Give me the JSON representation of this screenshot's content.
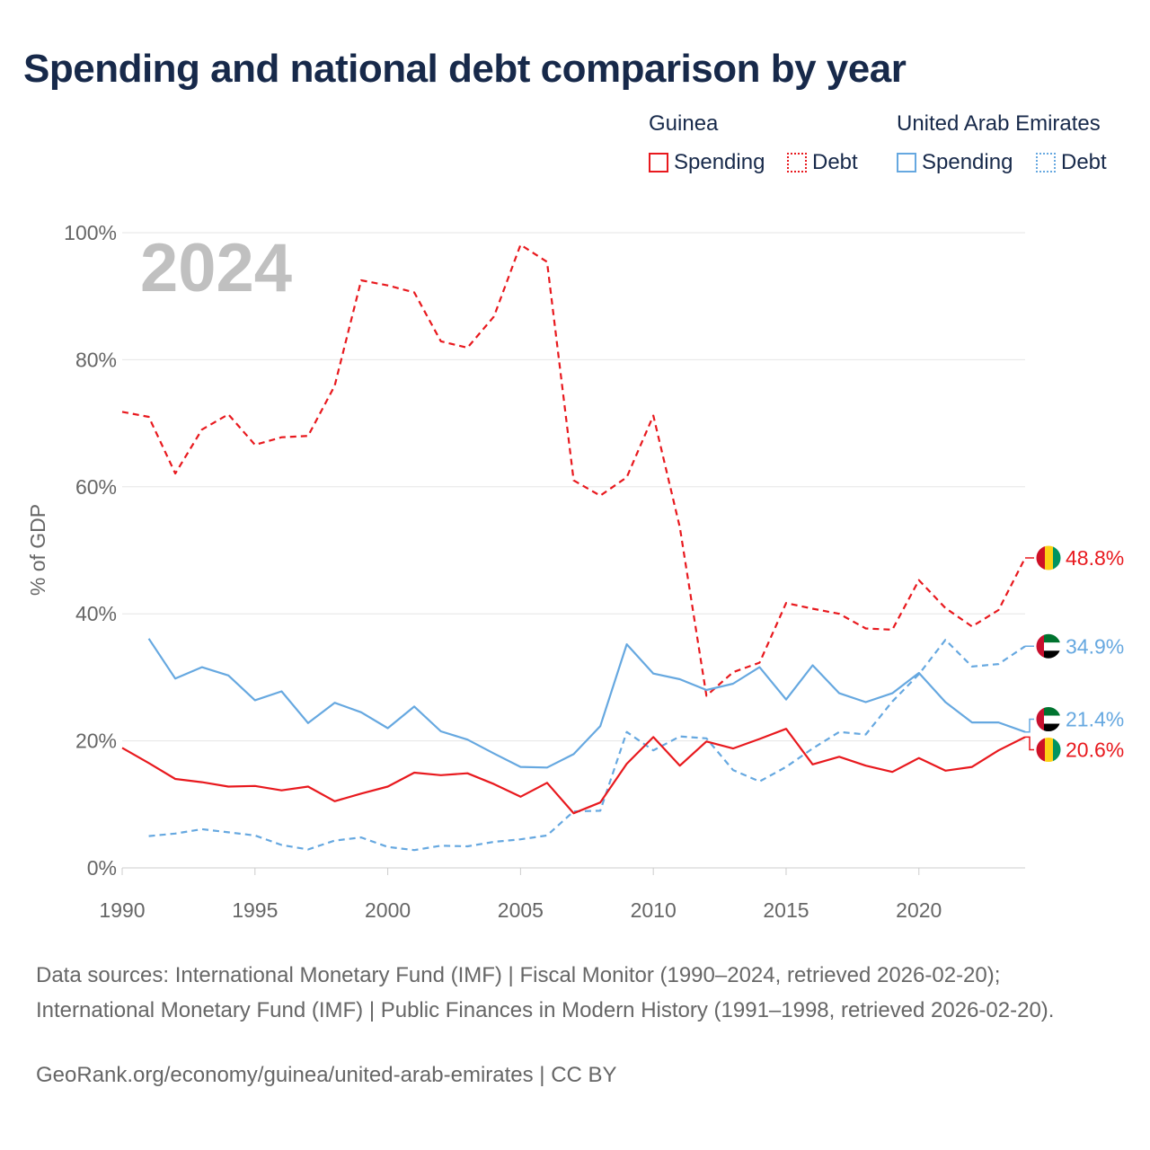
{
  "title": "Spending and national debt comparison by year",
  "legend": {
    "groups": [
      {
        "country": "Guinea",
        "spending_label": "Spending",
        "debt_label": "Debt",
        "color": "#e8191e"
      },
      {
        "country": "United Arab Emirates",
        "spending_label": "Spending",
        "debt_label": "Debt",
        "color": "#66a8e0"
      }
    ]
  },
  "chart_data": {
    "type": "line",
    "year_watermark": "2024",
    "ylabel": "% of GDP",
    "xlim": [
      1990,
      2024
    ],
    "ylim": [
      0,
      100
    ],
    "x_ticks": [
      1990,
      1995,
      2000,
      2005,
      2010,
      2015,
      2020
    ],
    "y_ticks": [
      {
        "value": 0,
        "label": "0%"
      },
      {
        "value": 20,
        "label": "20%"
      },
      {
        "value": 40,
        "label": "40%"
      },
      {
        "value": 60,
        "label": "60%"
      },
      {
        "value": 80,
        "label": "80%"
      },
      {
        "value": 100,
        "label": "100%"
      }
    ],
    "grid": true,
    "series": [
      {
        "name": "Guinea Debt",
        "country": "Guinea",
        "kind": "debt",
        "color": "#e8191e",
        "dashed": true,
        "end_label": "48.8%",
        "flag": "guinea",
        "points": [
          [
            1990,
            71.8
          ],
          [
            1991,
            71.0
          ],
          [
            1992,
            62.1
          ],
          [
            1993,
            69.0
          ],
          [
            1994,
            71.4
          ],
          [
            1995,
            66.6
          ],
          [
            1996,
            67.8
          ],
          [
            1997,
            68.0
          ],
          [
            1998,
            75.9
          ],
          [
            1999,
            92.5
          ],
          [
            2000,
            91.7
          ],
          [
            2001,
            90.6
          ],
          [
            2002,
            82.9
          ],
          [
            2003,
            81.9
          ],
          [
            2004,
            86.8
          ],
          [
            2005,
            98.1
          ],
          [
            2006,
            95.4
          ],
          [
            2007,
            61.0
          ],
          [
            2008,
            58.6
          ],
          [
            2009,
            61.5
          ],
          [
            2010,
            71.2
          ],
          [
            2011,
            53.6
          ],
          [
            2012,
            27.1
          ],
          [
            2013,
            30.8
          ],
          [
            2014,
            32.3
          ],
          [
            2015,
            41.7
          ],
          [
            2016,
            40.8
          ],
          [
            2017,
            40.0
          ],
          [
            2018,
            37.7
          ],
          [
            2019,
            37.5
          ],
          [
            2020,
            45.3
          ],
          [
            2021,
            40.9
          ],
          [
            2022,
            38.0
          ],
          [
            2023,
            40.6
          ],
          [
            2024,
            48.8
          ]
        ]
      },
      {
        "name": "United Arab Emirates Debt",
        "country": "United Arab Emirates",
        "kind": "debt",
        "color": "#66a8e0",
        "dashed": true,
        "end_label": "34.9%",
        "flag": "uae",
        "points": [
          [
            1991,
            5.0
          ],
          [
            1992,
            5.4
          ],
          [
            1993,
            6.1
          ],
          [
            1994,
            5.6
          ],
          [
            1995,
            5.1
          ],
          [
            1996,
            3.6
          ],
          [
            1997,
            2.9
          ],
          [
            1998,
            4.3
          ],
          [
            1999,
            4.8
          ],
          [
            2000,
            3.3
          ],
          [
            2001,
            2.8
          ],
          [
            2002,
            3.5
          ],
          [
            2003,
            3.4
          ],
          [
            2004,
            4.1
          ],
          [
            2005,
            4.5
          ],
          [
            2006,
            5.1
          ],
          [
            2007,
            8.9
          ],
          [
            2008,
            9.0
          ],
          [
            2009,
            21.4
          ],
          [
            2010,
            18.5
          ],
          [
            2011,
            20.7
          ],
          [
            2012,
            20.4
          ],
          [
            2013,
            15.4
          ],
          [
            2014,
            13.6
          ],
          [
            2015,
            15.9
          ],
          [
            2016,
            18.8
          ],
          [
            2017,
            21.4
          ],
          [
            2018,
            21.0
          ],
          [
            2019,
            26.2
          ],
          [
            2020,
            30.5
          ],
          [
            2021,
            35.9
          ],
          [
            2022,
            31.7
          ],
          [
            2023,
            32.1
          ],
          [
            2024,
            34.9
          ]
        ]
      },
      {
        "name": "United Arab Emirates Spending",
        "country": "United Arab Emirates",
        "kind": "spending",
        "color": "#66a8e0",
        "dashed": false,
        "end_label": "21.4%",
        "flag": "uae",
        "points": [
          [
            1991,
            36.1
          ],
          [
            1992,
            29.8
          ],
          [
            1993,
            31.6
          ],
          [
            1994,
            30.3
          ],
          [
            1995,
            26.4
          ],
          [
            1996,
            27.8
          ],
          [
            1997,
            22.8
          ],
          [
            1998,
            26.0
          ],
          [
            1999,
            24.5
          ],
          [
            2000,
            22.0
          ],
          [
            2001,
            25.4
          ],
          [
            2002,
            21.5
          ],
          [
            2003,
            20.2
          ],
          [
            2004,
            18.0
          ],
          [
            2005,
            15.9
          ],
          [
            2006,
            15.8
          ],
          [
            2007,
            17.9
          ],
          [
            2008,
            22.3
          ],
          [
            2009,
            35.2
          ],
          [
            2010,
            30.6
          ],
          [
            2011,
            29.7
          ],
          [
            2012,
            28.0
          ],
          [
            2013,
            29.0
          ],
          [
            2014,
            31.6
          ],
          [
            2015,
            26.5
          ],
          [
            2016,
            31.9
          ],
          [
            2017,
            27.5
          ],
          [
            2018,
            26.1
          ],
          [
            2019,
            27.5
          ],
          [
            2020,
            30.7
          ],
          [
            2021,
            26.1
          ],
          [
            2022,
            22.9
          ],
          [
            2023,
            22.9
          ],
          [
            2024,
            21.4
          ]
        ]
      },
      {
        "name": "Guinea Spending",
        "country": "Guinea",
        "kind": "spending",
        "color": "#e8191e",
        "dashed": false,
        "end_label": "20.6%",
        "flag": "guinea",
        "points": [
          [
            1990,
            18.9
          ],
          [
            1991,
            16.5
          ],
          [
            1992,
            14.0
          ],
          [
            1993,
            13.5
          ],
          [
            1994,
            12.8
          ],
          [
            1995,
            12.9
          ],
          [
            1996,
            12.2
          ],
          [
            1997,
            12.8
          ],
          [
            1998,
            10.5
          ],
          [
            1999,
            11.7
          ],
          [
            2000,
            12.8
          ],
          [
            2001,
            15.0
          ],
          [
            2002,
            14.6
          ],
          [
            2003,
            14.9
          ],
          [
            2004,
            13.2
          ],
          [
            2005,
            11.2
          ],
          [
            2006,
            13.4
          ],
          [
            2007,
            8.6
          ],
          [
            2008,
            10.3
          ],
          [
            2009,
            16.4
          ],
          [
            2010,
            20.6
          ],
          [
            2011,
            16.1
          ],
          [
            2012,
            19.9
          ],
          [
            2013,
            18.8
          ],
          [
            2014,
            20.3
          ],
          [
            2015,
            21.9
          ],
          [
            2016,
            16.3
          ],
          [
            2017,
            17.5
          ],
          [
            2018,
            16.1
          ],
          [
            2019,
            15.1
          ],
          [
            2020,
            17.3
          ],
          [
            2021,
            15.3
          ],
          [
            2022,
            15.9
          ],
          [
            2023,
            18.5
          ],
          [
            2024,
            20.6
          ]
        ]
      }
    ]
  },
  "footer": {
    "source": "Data sources: International Monetary Fund (IMF) | Fiscal Monitor (1990–2024, retrieved 2026-02-20); International Monetary Fund (IMF) | Public Finances in Modern History (1991–1998, retrieved 2026-02-20).",
    "credit": "GeoRank.org/economy/guinea/united-arab-emirates | CC BY"
  }
}
